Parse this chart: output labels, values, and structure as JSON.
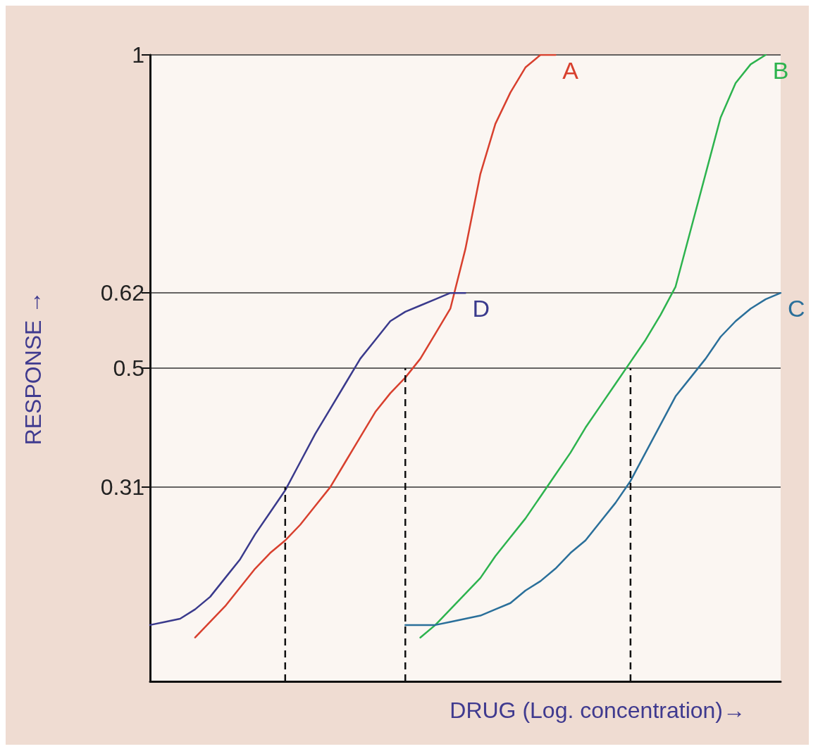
{
  "chart_data": {
    "type": "line",
    "xlabel": "DRUG (Log. concentration)→",
    "ylabel": "RESPONSE →",
    "categories": [
      null,
      null,
      null,
      null,
      null,
      null,
      null,
      null,
      null,
      null,
      null,
      null,
      null,
      null,
      null,
      null,
      null,
      null,
      null,
      null,
      null,
      null,
      null,
      null,
      null,
      null,
      null,
      null,
      null,
      null,
      null,
      null,
      null,
      null,
      null,
      null,
      null,
      null,
      null,
      null,
      null,
      null,
      null
    ],
    "ylim": [
      0,
      1
    ],
    "yticks": [
      0.31,
      0.5,
      0.62,
      1
    ],
    "grid": "y",
    "tick_labels": "y",
    "marker": "none",
    "line_style": "solid",
    "series": [
      {
        "name": "A",
        "color": "#d8402e",
        "values": [
          null,
          null,
          null,
          0.07,
          0.095,
          0.12,
          0.15,
          0.18,
          0.205,
          0.225,
          0.25,
          0.28,
          0.31,
          0.35,
          0.39,
          0.43,
          0.46,
          0.485,
          0.515,
          0.555,
          0.595,
          0.69,
          0.81,
          0.89,
          0.94,
          0.98,
          1,
          1,
          null,
          null,
          null,
          null,
          null,
          null,
          null,
          null,
          null,
          null,
          null,
          null,
          null,
          null,
          null
        ]
      },
      {
        "name": "B",
        "color": "#2db34e",
        "values": [
          null,
          null,
          null,
          null,
          null,
          null,
          null,
          null,
          null,
          null,
          null,
          null,
          null,
          null,
          null,
          null,
          null,
          null,
          0.07,
          0.09,
          0.115,
          0.14,
          0.165,
          0.2,
          0.23,
          0.26,
          0.295,
          0.33,
          0.365,
          0.405,
          0.44,
          0.475,
          0.51,
          0.545,
          0.585,
          0.63,
          0.72,
          0.81,
          0.9,
          0.955,
          0.985,
          1,
          null
        ]
      },
      {
        "name": "C",
        "color": "#2a6f9a",
        "values": [
          null,
          null,
          null,
          null,
          null,
          null,
          null,
          null,
          null,
          null,
          null,
          null,
          null,
          null,
          null,
          null,
          null,
          0.09,
          0.09,
          0.09,
          0.095,
          0.1,
          0.105,
          0.115,
          0.125,
          0.145,
          0.16,
          0.18,
          0.205,
          0.225,
          0.255,
          0.285,
          0.32,
          0.365,
          0.41,
          0.455,
          0.485,
          0.515,
          0.55,
          0.575,
          0.595,
          0.61,
          0.62
        ]
      },
      {
        "name": "D",
        "color": "#3a3a8c",
        "values": [
          0.09,
          0.095,
          0.1,
          0.115,
          0.135,
          0.165,
          0.195,
          0.235,
          0.27,
          0.305,
          0.35,
          0.395,
          0.435,
          0.475,
          0.515,
          0.545,
          0.575,
          0.59,
          0.6,
          0.61,
          0.62,
          0.62,
          null,
          null,
          null,
          null,
          null,
          null,
          null,
          null,
          null,
          null,
          null,
          null,
          null,
          null,
          null,
          null,
          null,
          null,
          null,
          null,
          null
        ]
      }
    ]
  }
}
